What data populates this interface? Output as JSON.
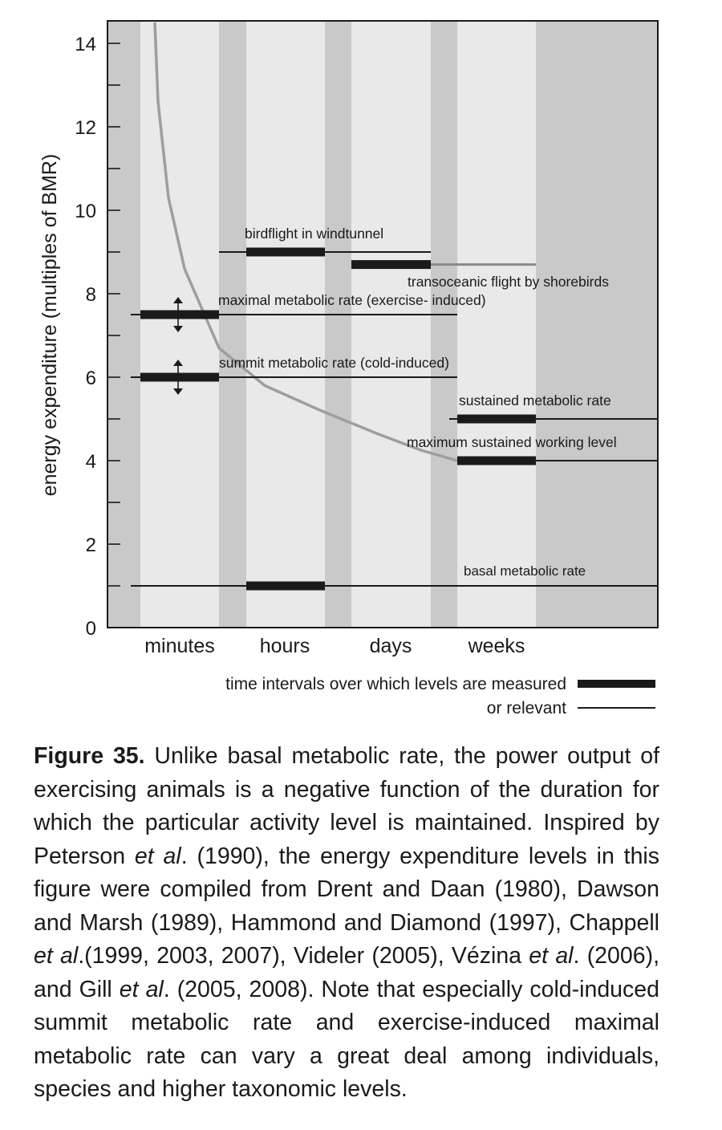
{
  "chart_data": {
    "type": "line",
    "xlabel": "",
    "ylabel": "energy expenditure (multiples of BMR)",
    "ylim": [
      0,
      14.5
    ],
    "yticks": [
      0,
      2,
      4,
      6,
      8,
      10,
      12,
      14
    ],
    "categories": [
      "minutes",
      "hours",
      "days",
      "weeks"
    ],
    "x_domain": [
      0,
      6
    ],
    "curve": {
      "name": "",
      "x": [
        1.4,
        1.5,
        1.75,
        2.0,
        2.5,
        3.0,
        3.5,
        4.0,
        4.5,
        5.0
      ],
      "y": [
        14.5,
        12.6,
        10.3,
        8.6,
        6.7,
        5.8,
        5.2,
        4.65,
        4.25,
        4.0
      ]
    },
    "series": [
      {
        "name": "birdflight in windtunnel",
        "y": 9.0,
        "measured": [
          2.0,
          3.0
        ],
        "relevant": [
          1.7,
          4.0
        ]
      },
      {
        "name": "transoceanic flight by shorebirds",
        "y": 8.7,
        "measured": [
          4.0,
          4.0
        ],
        "relevant": [
          4.0,
          5.0
        ]
      },
      {
        "name": "transoceanic flight by shorebirds (measured)",
        "y": 8.7,
        "measured": [
          3.0,
          4.0
        ],
        "relevant": [
          3.0,
          4.0
        ]
      },
      {
        "name": "maximal metabolic rate (exercise- induced)",
        "y": 7.5,
        "measured": [
          0.7,
          1.7
        ],
        "relevant": [
          0.5,
          5.0
        ]
      },
      {
        "name": "summit metabolic rate (cold-induced)",
        "y": 6.0,
        "measured": [
          0.7,
          1.7
        ],
        "relevant": [
          0.5,
          5.0
        ]
      },
      {
        "name": "sustained metabolic rate",
        "y": 5.0,
        "measured": [
          5.0,
          6.0
        ],
        "relevant": [
          4.95,
          7.0
        ]
      },
      {
        "name": "maximum sustained working level",
        "y": 4.0,
        "measured": [
          5.0,
          6.0
        ],
        "relevant": [
          5.0,
          7.0
        ]
      },
      {
        "name": "basal metabolic rate",
        "y": 1.0,
        "measured": [
          2.0,
          3.0
        ],
        "relevant": [
          0.5,
          7.0
        ]
      }
    ],
    "labels": {
      "birdflight": "birdflight in windtunnel",
      "transoceanic": "transoceanic flight by shorebirds",
      "maximal": "maximal metabolic rate (exercise- induced)",
      "summit": "summit metabolic rate (cold-induced)",
      "sustained": "sustained metabolic rate",
      "max_sustained": "maximum sustained working level",
      "basal": "basal metabolic rate"
    },
    "legend": {
      "measured_label": "time intervals over which levels are measured",
      "relevant_label": "or relevant",
      "placement": "bottom-right"
    },
    "colors": {
      "dark_band": "#c9c9c9",
      "light_band": "#e9e9e9",
      "curve": "#9e9e9e",
      "thin_gray_line": "#8a8a8a",
      "bar": "#1a1a1a"
    }
  },
  "caption": {
    "label": "Figure 35.",
    "text_1": " Unlike basal metabolic rate, the power output of exercising animals is a negative function of the duration for which the particular activity level is maintained. Inspired by Peterson ",
    "etal_1": "et al",
    "text_2": ". (1990), the energy expenditure levels in this figure were compiled from Drent and Daan (1980), Dawson and Marsh (1989), Hammond and Diamond (1997), Chappell ",
    "etal_2": "et al",
    "text_3": ".(1999, 2003, 2007), Videler (2005), Vézina ",
    "etal_3": "et al",
    "text_4": ". (2006), and Gill ",
    "etal_4": "et al",
    "text_5": ". (2005, 2008). Note that especially cold-induced summit metabolic rate and exercise-induced maximal metabolic rate can vary a great deal among individuals, species and higher taxonomic levels."
  }
}
